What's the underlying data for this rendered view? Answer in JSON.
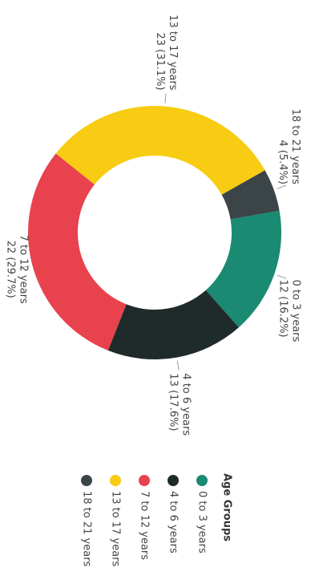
{
  "chart_data": {
    "type": "donut",
    "categories": [
      "0 to 3 years",
      "4 to 6 years",
      "7 to 12 years",
      "13 to 17 years",
      "18 to 21 years"
    ],
    "values": [
      12,
      13,
      22,
      23,
      4
    ],
    "value_labels": [
      "12 (16.2%)",
      "13 (17.6%)",
      "22 (29.7%)",
      "23 (31.1%)",
      "4 (5.4%)"
    ],
    "colors": [
      "#1b8a73",
      "#1f2b2a",
      "#e8424e",
      "#f7cc12",
      "#3b4548"
    ],
    "legend_title": "Age Groups"
  }
}
